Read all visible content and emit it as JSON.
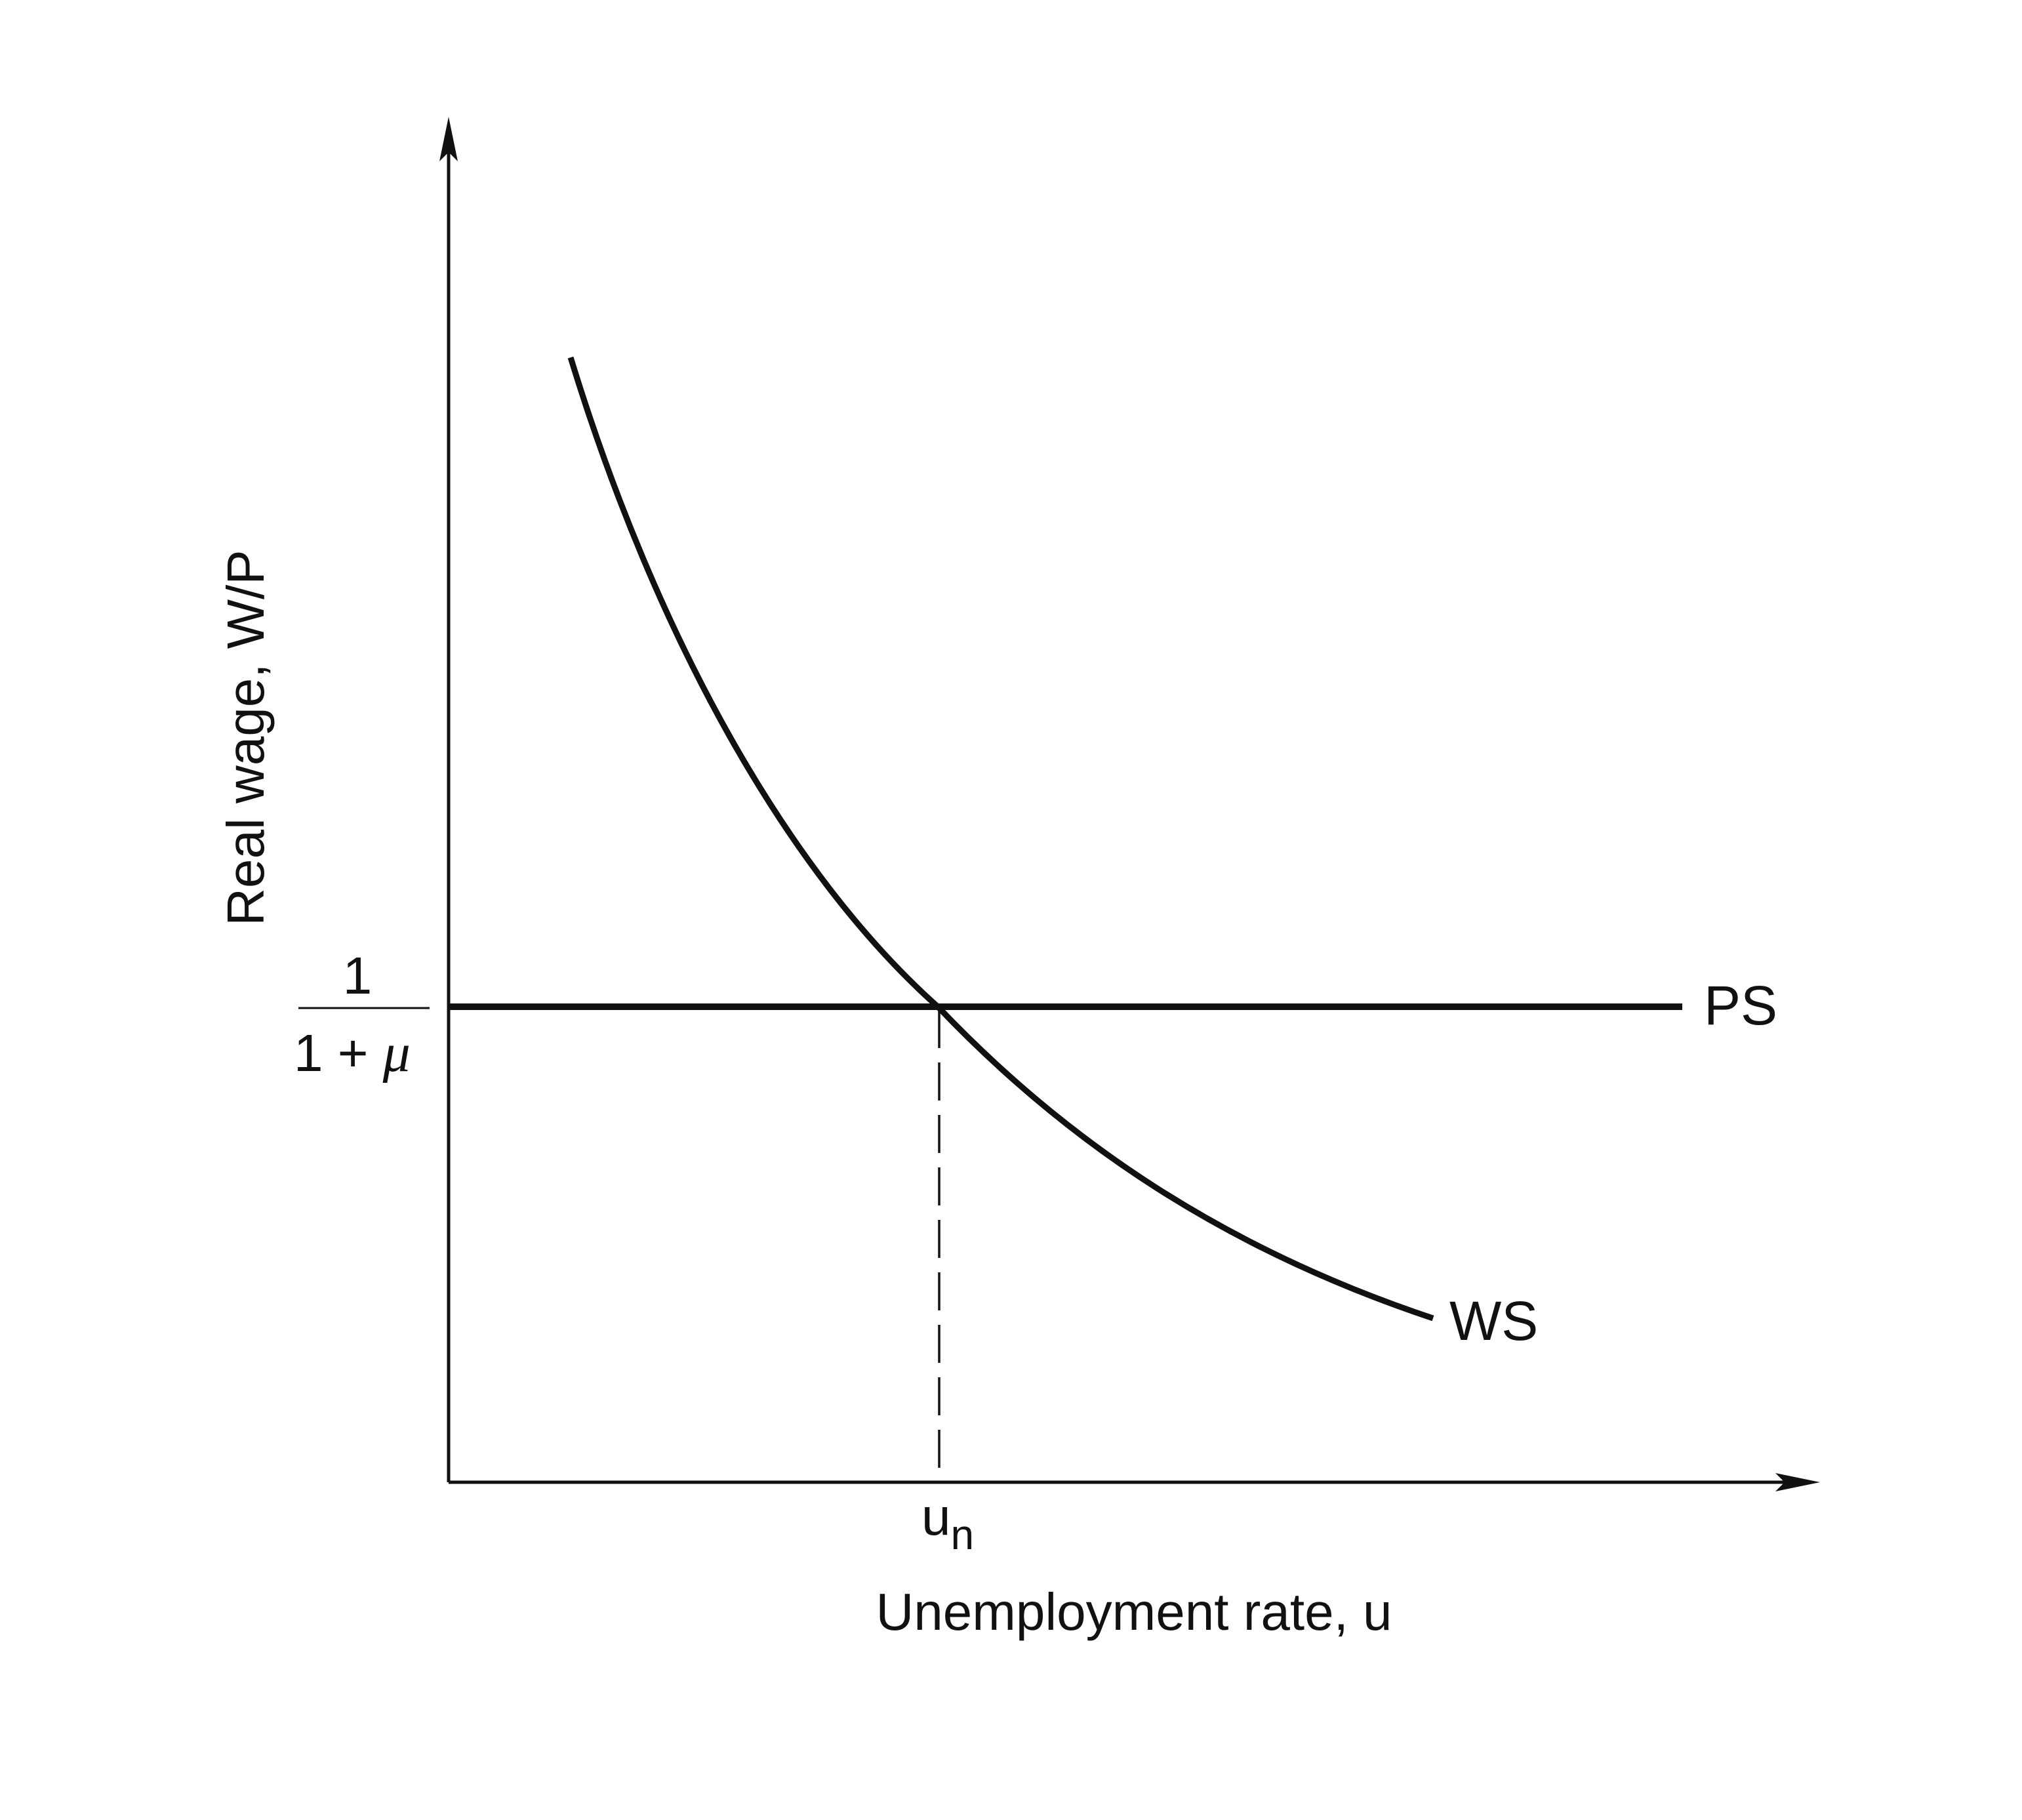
{
  "diagram": {
    "x_axis_label": "Unemployment rate, u",
    "y_axis_label": "Real wage, W/P",
    "curves": {
      "ps_label": "PS",
      "ws_label": "WS"
    },
    "y_marker": {
      "numerator": "1",
      "denominator_prefix": "1 + ",
      "denominator_symbol": "μ"
    },
    "x_marker": {
      "base": "u",
      "subscript": "n"
    }
  },
  "colors": {
    "line": "#111111",
    "background": "#ffffff"
  }
}
